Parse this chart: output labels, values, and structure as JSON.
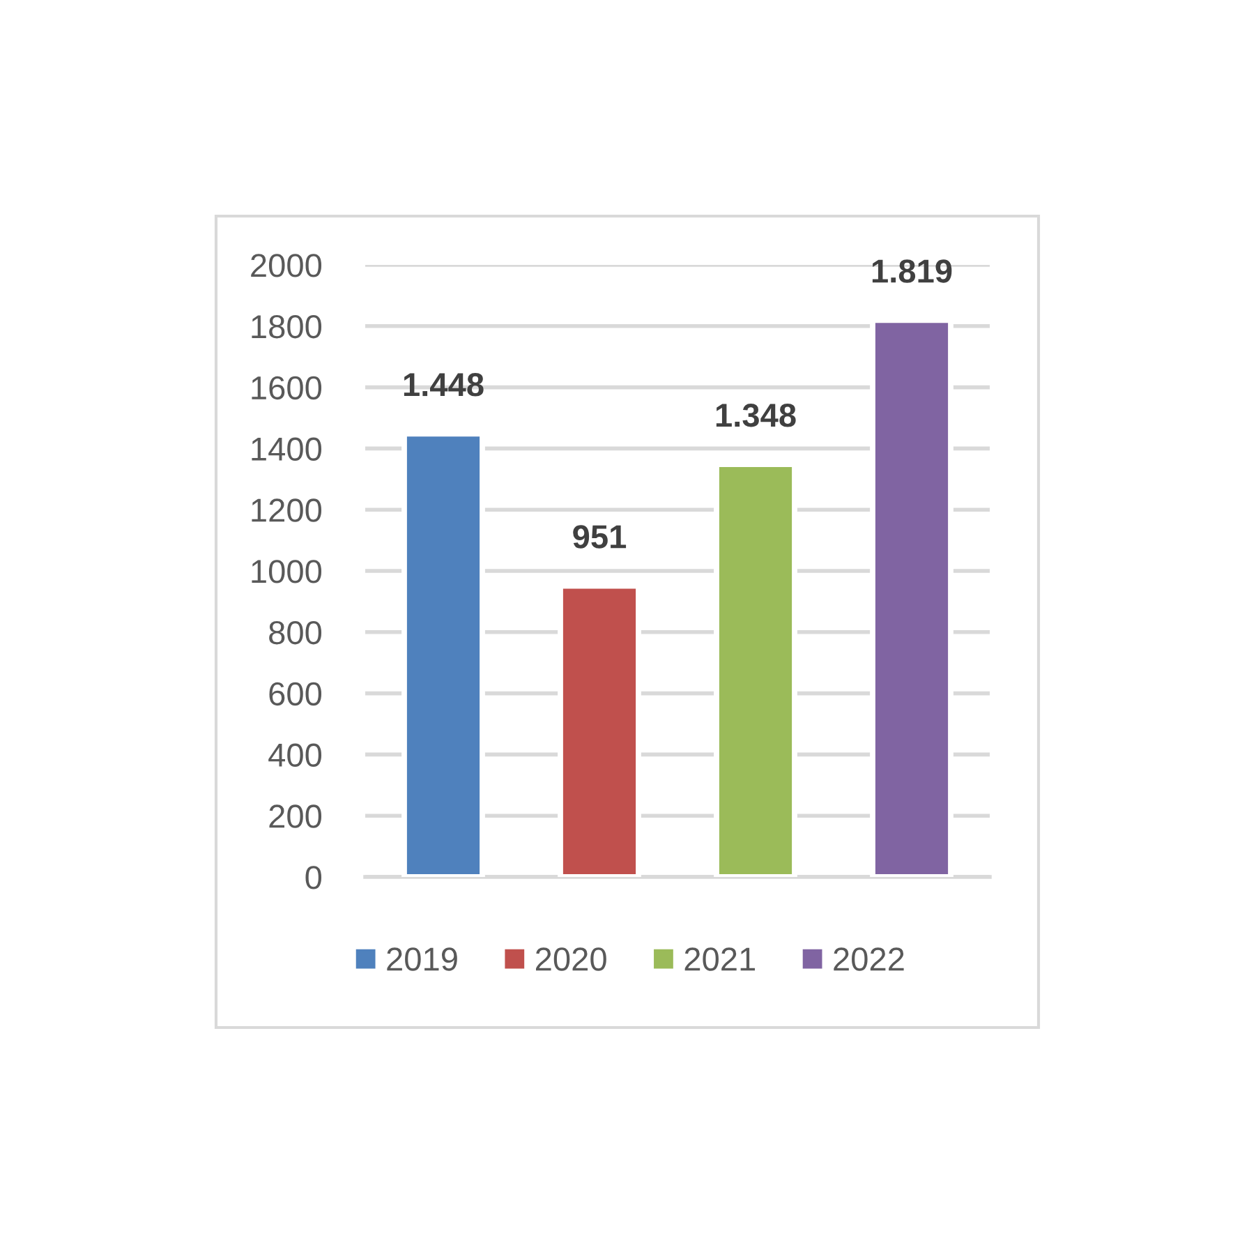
{
  "chart_data": {
    "type": "bar",
    "categories": [
      null
    ],
    "series": [
      {
        "name": "2019",
        "color": "#4f81bd",
        "values": [
          1448
        ],
        "value_labels": [
          "1.448"
        ]
      },
      {
        "name": "2020",
        "color": "#c0504d",
        "values": [
          951
        ],
        "value_labels": [
          "951"
        ]
      },
      {
        "name": "2021",
        "color": "#9bbb59",
        "values": [
          1348
        ],
        "value_labels": [
          "1.348"
        ]
      },
      {
        "name": "2022",
        "color": "#8064a2",
        "values": [
          1819
        ],
        "value_labels": [
          "1.819"
        ]
      }
    ],
    "ylim": [
      0,
      2000
    ],
    "yticks": [
      0,
      200,
      400,
      600,
      800,
      1000,
      1200,
      1400,
      1600,
      1800,
      2000
    ],
    "grid": "y",
    "legend": "bottom"
  }
}
